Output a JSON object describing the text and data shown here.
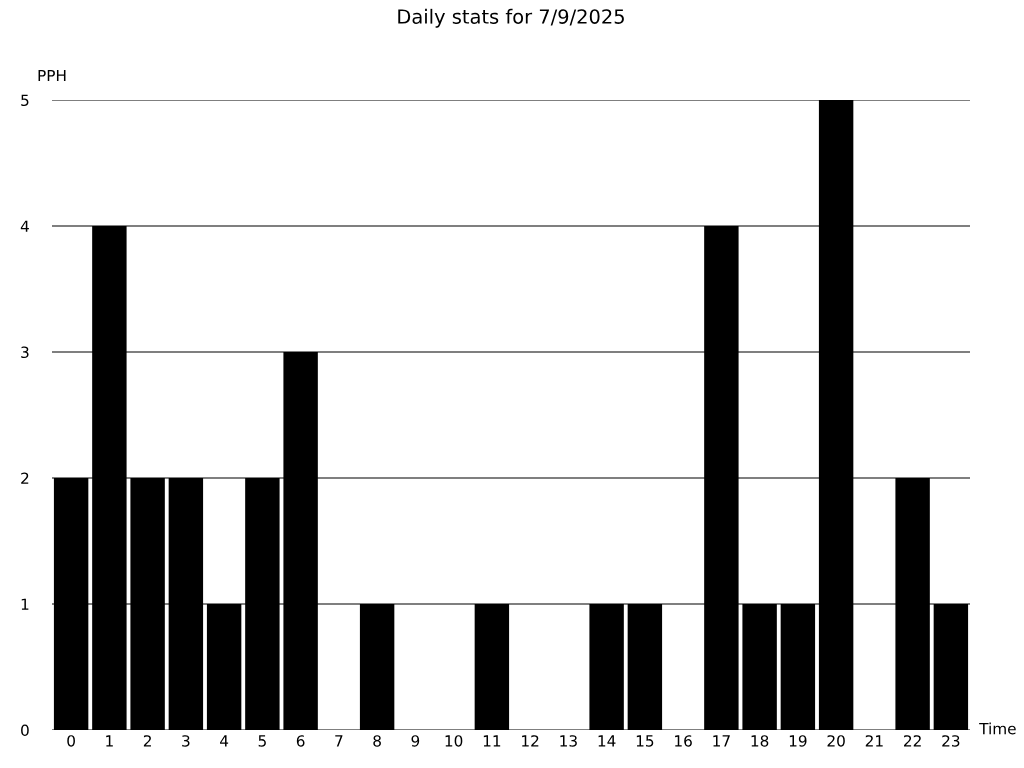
{
  "chart_data": {
    "type": "bar",
    "title": "Daily stats for 7/9/2025",
    "xlabel": "Time",
    "ylabel": "PPH",
    "categories": [
      "0",
      "1",
      "2",
      "3",
      "4",
      "5",
      "6",
      "7",
      "8",
      "9",
      "10",
      "11",
      "12",
      "13",
      "14",
      "15",
      "16",
      "17",
      "18",
      "19",
      "20",
      "21",
      "22",
      "23"
    ],
    "values": [
      2,
      4,
      2,
      2,
      1,
      2,
      3,
      0,
      1,
      0,
      0,
      1,
      0,
      0,
      1,
      1,
      0,
      4,
      1,
      1,
      5,
      0,
      2,
      1
    ],
    "color": "#000000",
    "ylim": [
      0,
      5
    ],
    "yticks": [
      0,
      1,
      2,
      3,
      4,
      5
    ],
    "grid": "y",
    "legend": false
  }
}
